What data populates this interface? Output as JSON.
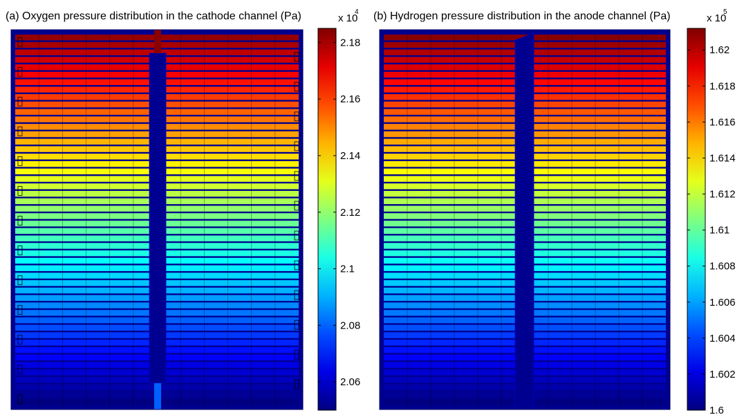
{
  "chart_data": [
    {
      "type": "heatmap",
      "title": "(a) Oxygen pressure distribution in the cathode channel (Pa)",
      "quantity": "oxygen pressure",
      "unit": "Pa",
      "layout": "cathode serpentine flow channels, left and right halves separated by a central manifold",
      "channel_rows": 50,
      "inlet": "top",
      "pressure_top": 21820,
      "pressure_bottom": 20500,
      "gradient": "decreasing linearly from top to bottom",
      "colormap": "jet",
      "colorbar": {
        "multiplier_base": "x 10",
        "multiplier_exponent": "4",
        "range": [
          2.05,
          2.185
        ],
        "ticks": [
          {
            "value": 2.18,
            "label": "2.18"
          },
          {
            "value": 2.16,
            "label": "2.16"
          },
          {
            "value": 2.14,
            "label": "2.14"
          },
          {
            "value": 2.12,
            "label": "2.12"
          },
          {
            "value": 2.1,
            "label": "2.1"
          },
          {
            "value": 2.08,
            "label": "2.08"
          },
          {
            "value": 2.06,
            "label": "2.06"
          }
        ]
      }
    },
    {
      "type": "heatmap",
      "title": "(b) Hydrogen pressure distribution in the anode channel (Pa)",
      "quantity": "hydrogen pressure",
      "unit": "Pa",
      "layout": "anode straight flow channels, left and right halves separated by a central manifold",
      "channel_rows": 50,
      "inlet": "top",
      "pressure_top": 162100,
      "pressure_bottom": 160000,
      "gradient": "decreasing linearly from top to bottom",
      "colormap": "jet",
      "colorbar": {
        "multiplier_base": "x 10",
        "multiplier_exponent": "5",
        "range": [
          1.6,
          1.6212
        ],
        "ticks": [
          {
            "value": 1.62,
            "label": "1.62"
          },
          {
            "value": 1.618,
            "label": "1.618"
          },
          {
            "value": 1.616,
            "label": "1.616"
          },
          {
            "value": 1.614,
            "label": "1.614"
          },
          {
            "value": 1.612,
            "label": "1.612"
          },
          {
            "value": 1.61,
            "label": "1.61"
          },
          {
            "value": 1.608,
            "label": "1.608"
          },
          {
            "value": 1.606,
            "label": "1.606"
          },
          {
            "value": 1.604,
            "label": "1.604"
          },
          {
            "value": 1.602,
            "label": "1.602"
          },
          {
            "value": 1.6,
            "label": "1.6"
          }
        ]
      }
    }
  ]
}
